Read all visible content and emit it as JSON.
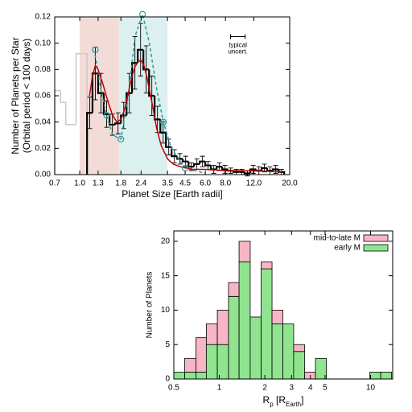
{
  "chart_data": [
    {
      "type": "step",
      "xlabel": "Planet Size [Earth radii]",
      "ylabel": [
        "Number of Planets per Star",
        "(Orbital period < 100 days)"
      ],
      "xlog": true,
      "xlim": [
        0.7,
        20
      ],
      "xticks": [
        0.7,
        {
          "value": 1.0,
          "label": "1.0"
        },
        1.3,
        1.8,
        2.4,
        3.5,
        4.5,
        {
          "value": 6.0,
          "label": "6.0"
        },
        {
          "value": 8.0,
          "label": "8.0"
        },
        {
          "value": 12.0,
          "label": "12.0"
        },
        {
          "value": 20.0,
          "label": "20.0"
        }
      ],
      "ylim": [
        0,
        0.12
      ],
      "yticks": [
        {
          "value": 0,
          "label": "0.00"
        },
        0.02,
        0.04,
        0.06,
        0.08,
        {
          "value": 0.1,
          "label": "0.10"
        },
        0.12
      ],
      "regions": [
        {
          "xlim": [
            1.0,
            1.75
          ],
          "color": "#f3dcd8"
        },
        {
          "xlim": [
            1.75,
            3.5
          ],
          "color": "#dcf0f0"
        }
      ],
      "gray_histogram": {
        "color": "#c8c8c8",
        "bins": [
          0.7,
          0.76,
          0.82,
          0.88,
          0.95,
          1.03,
          1.11
        ],
        "values": [
          0.064,
          0.055,
          0.038,
          0.038,
          0.092,
          0.092
        ]
      },
      "histogram": {
        "color": "#000000",
        "bins": [
          1.11,
          1.2,
          1.3,
          1.41,
          1.53,
          1.66,
          1.8,
          1.95,
          2.11,
          2.29,
          2.48,
          2.69,
          2.91,
          3.16,
          3.42,
          3.71,
          4.02,
          4.35,
          4.72,
          5.11,
          5.54,
          6.0,
          6.5,
          7.05,
          7.64,
          8.28,
          8.97,
          9.72,
          10.5,
          11.4,
          12.4,
          13.4,
          14.5,
          15.7,
          17.1,
          18.5
        ],
        "values": [
          0.047,
          0.077,
          0.062,
          0.046,
          0.038,
          0.039,
          0.045,
          0.062,
          0.085,
          0.095,
          0.08,
          0.06,
          0.042,
          0.032,
          0.021,
          0.014,
          0.012,
          0.01,
          0.006,
          0.008,
          0.01,
          0.007,
          0.004,
          0.006,
          0.004,
          0.003,
          0.002,
          0.002,
          0.001,
          0.004,
          0.003,
          0.005,
          0.003,
          0.004,
          0.002
        ],
        "errors": [
          0.012,
          0.02,
          0.015,
          0.01,
          0.008,
          0.008,
          0.01,
          0.015,
          0.02,
          0.02,
          0.018,
          0.015,
          0.01,
          0.008,
          0.006,
          0.005,
          0.004,
          0.004,
          0.003,
          0.004,
          0.004,
          0.003,
          0.003,
          0.003,
          0.003,
          0.002,
          0.002,
          0.002,
          0.002,
          0.003,
          0.003,
          0.003,
          0.003,
          0.003,
          0.002
        ]
      },
      "curves": [
        {
          "color": "#2a9a9a",
          "dashed": true,
          "x": [
            1.2,
            1.25,
            1.35,
            1.47,
            1.6,
            1.8,
            2.0,
            2.2,
            2.45,
            2.7,
            3.0,
            3.3,
            3.7,
            4.5,
            6
          ],
          "values": [
            0.095,
            0.09,
            0.065,
            0.045,
            0.03,
            0.027,
            0.06,
            0.105,
            0.122,
            0.1,
            0.065,
            0.04,
            0.02,
            0.005,
            0.001
          ]
        },
        {
          "color": "#c00000",
          "dashed": false,
          "x": [
            1.15,
            1.2,
            1.25,
            1.3,
            1.4,
            1.5,
            1.6,
            1.7,
            1.8,
            1.9,
            2.0,
            2.1,
            2.2,
            2.3,
            2.4,
            2.5,
            2.6,
            2.8,
            3.0,
            3.2,
            3.5,
            3.8,
            4.2,
            4.6,
            5,
            6,
            8,
            12,
            18
          ],
          "values": [
            0.06,
            0.075,
            0.083,
            0.08,
            0.068,
            0.055,
            0.045,
            0.04,
            0.042,
            0.05,
            0.062,
            0.074,
            0.082,
            0.086,
            0.087,
            0.083,
            0.075,
            0.055,
            0.035,
            0.022,
            0.012,
            0.008,
            0.006,
            0.005,
            0.004,
            0.004,
            0.003,
            0.003,
            0.002
          ]
        }
      ],
      "markers": {
        "color": "#2a9a9a",
        "x": [
          1.25,
          1.47,
          1.8,
          2.45,
          3.3,
          4.5
        ],
        "values": [
          0.095,
          0.045,
          0.027,
          0.122,
          0.04,
          0.005
        ]
      },
      "annotation": {
        "text": [
          "typical",
          "uncert."
        ],
        "x": [
          8.6,
          10.6
        ],
        "y": 0.105
      }
    },
    {
      "type": "histogram",
      "xlabel": [
        "R",
        "p",
        " [R",
        "Earth",
        "]"
      ],
      "ylabel": "Number of Planets",
      "xlog": true,
      "xlim": [
        0.5,
        14
      ],
      "xticks": [
        0.5,
        1,
        2,
        3,
        4,
        5,
        10
      ],
      "ylim": [
        0,
        21.5
      ],
      "yticks": [
        0,
        5,
        10,
        15,
        20
      ],
      "legend": "top-right",
      "bins": [
        0.5,
        0.59,
        0.7,
        0.82,
        0.97,
        1.15,
        1.35,
        1.6,
        1.89,
        2.23,
        2.63,
        3.1,
        3.66,
        4.32,
        5.1,
        6.02,
        7.1,
        8.38,
        9.89,
        11.67,
        13.77
      ],
      "series": [
        {
          "name": "mid-to-late M",
          "color": "#f7b6c6",
          "values": [
            0,
            2,
            5,
            3,
            5,
            2,
            3,
            0,
            1,
            2,
            0,
            1,
            1,
            0,
            0,
            0,
            0,
            0,
            0,
            0
          ]
        },
        {
          "name": "early M",
          "color": "#90e490",
          "values": [
            1,
            1,
            1,
            5,
            5,
            12,
            17,
            9,
            16,
            8,
            8,
            4,
            0,
            3,
            0,
            0,
            0,
            0,
            1,
            1
          ]
        }
      ]
    }
  ]
}
